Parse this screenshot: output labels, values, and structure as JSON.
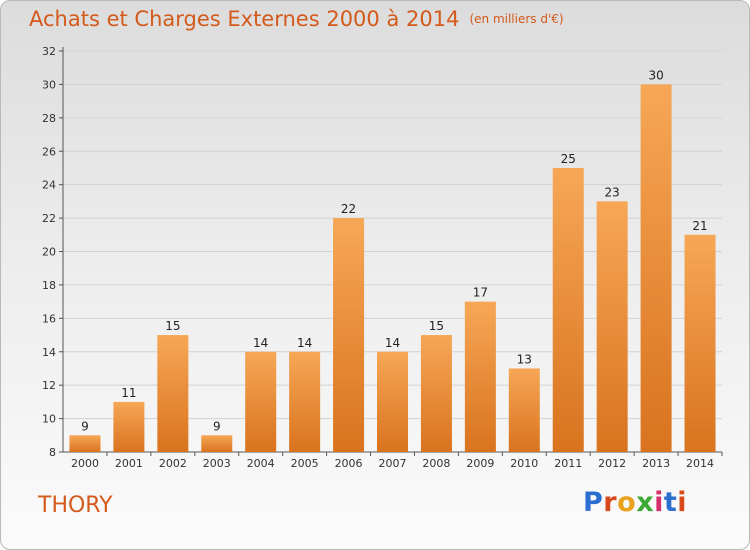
{
  "title": "Achats et Charges Externes 2000 à 2014",
  "unit": "(en milliers d'€)",
  "place": "THORY",
  "logo": {
    "letters": [
      "P",
      "r",
      "o",
      "x",
      "i",
      "t",
      "i"
    ],
    "colors": [
      "#2a6fd0",
      "#d94a1a",
      "#e8a21c",
      "#3aaa35",
      "#d62d6b",
      "#2a6fd0",
      "#d94a1a"
    ]
  },
  "colors": {
    "title": "#d35a1b",
    "bar_top": "#f6a756",
    "bar_bottom": "#d9731e"
  },
  "chart_data": {
    "type": "bar",
    "categories": [
      "2000",
      "2001",
      "2002",
      "2003",
      "2004",
      "2005",
      "2006",
      "2007",
      "2008",
      "2009",
      "2010",
      "2011",
      "2012",
      "2013",
      "2014"
    ],
    "values": [
      9,
      11,
      15,
      9,
      14,
      14,
      22,
      14,
      15,
      17,
      13,
      25,
      23,
      30,
      21
    ],
    "ylim": [
      8,
      32
    ],
    "yticks": [
      8,
      10,
      12,
      14,
      16,
      18,
      20,
      22,
      24,
      26,
      28,
      30,
      32
    ],
    "grid": true
  }
}
